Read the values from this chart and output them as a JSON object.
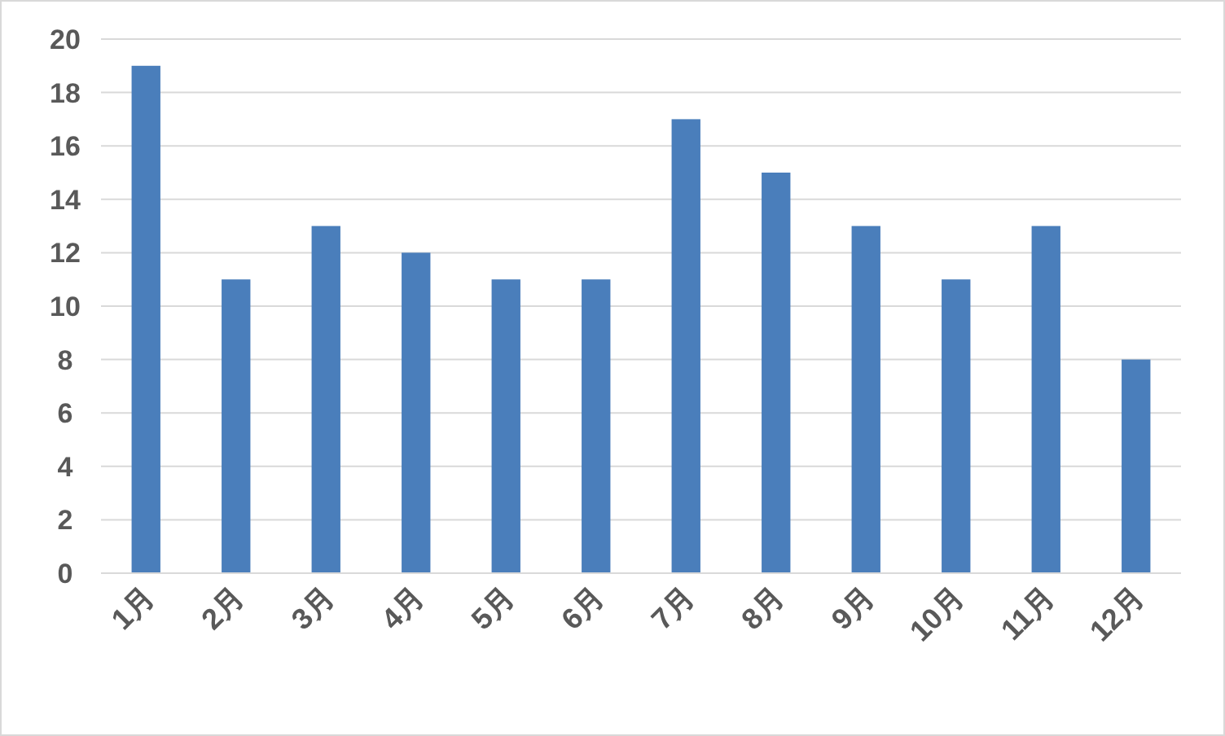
{
  "chart_data": {
    "type": "bar",
    "categories": [
      "1月",
      "2月",
      "3月",
      "4月",
      "5月",
      "6月",
      "7月",
      "8月",
      "9月",
      "10月",
      "11月",
      "12月"
    ],
    "values": [
      19,
      11,
      13,
      12,
      11,
      11,
      17,
      15,
      13,
      11,
      13,
      8
    ],
    "color": "#4a7ebb",
    "ylim": [
      0,
      20
    ],
    "yticks": [
      0,
      2,
      4,
      6,
      8,
      10,
      12,
      14,
      16,
      18,
      20
    ],
    "grid": "y"
  }
}
